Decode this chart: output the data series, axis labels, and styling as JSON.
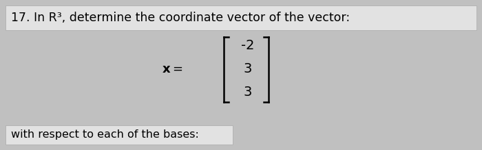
{
  "bg_color": "#c0c0c0",
  "header_text": "17. In R³, determine the coordinate vector of the vector:",
  "header_bg": "#e2e2e2",
  "footer_text": "with respect to each of the bases:",
  "footer_bg": "#e2e2e2",
  "matrix_values": [
    "-2",
    "3",
    "3"
  ],
  "header_fontsize": 12.5,
  "eq_fontsize": 13,
  "matrix_fontsize": 14,
  "footer_fontsize": 11.5
}
